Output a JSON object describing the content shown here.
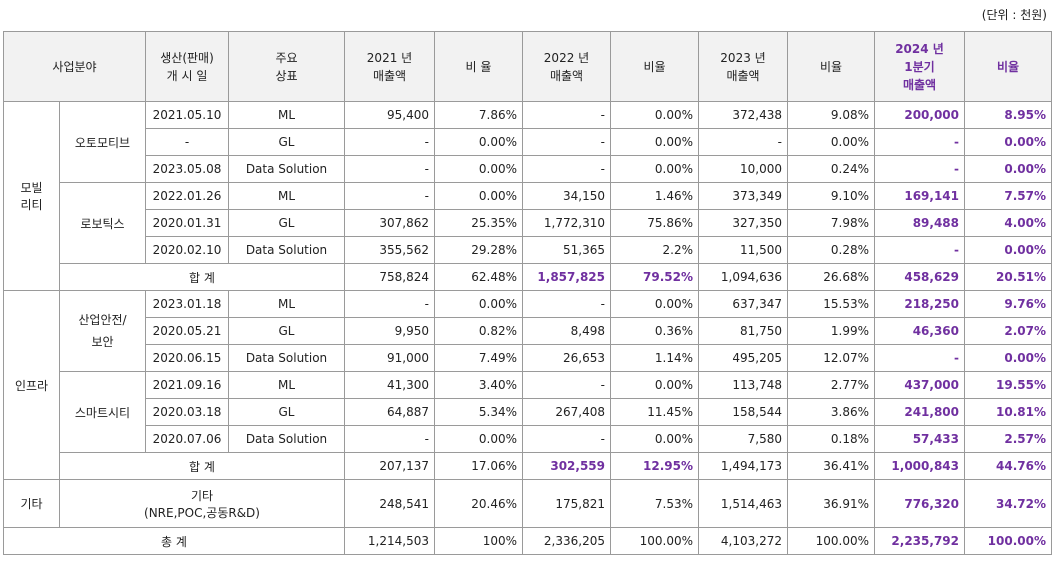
{
  "unit": "(단위 : 천원)",
  "headers": {
    "field": "사업분야",
    "launch": [
      "생산(판매)",
      "개 시 일"
    ],
    "brand": [
      "주요",
      "상표"
    ],
    "rev2021": [
      "2021 년",
      "매출액"
    ],
    "ratio2021": "비 율",
    "rev2022": [
      "2022 년",
      "매출액"
    ],
    "ratio2022": "비율",
    "rev2023": [
      "2023 년",
      "매출액"
    ],
    "ratio2023": "비율",
    "rev2024q1": [
      "2024 년",
      "1분기",
      "매출액"
    ],
    "ratio2024q1": "비율"
  },
  "groups": {
    "mobility": [
      "모빌",
      "리티"
    ],
    "automotive": "오토모티브",
    "robotics": "로보틱스",
    "infra": "인프라",
    "safety": [
      "산업안전/",
      "보안"
    ],
    "smartcity": "스마트시티",
    "etc": "기타",
    "etc_item": [
      "기타",
      "(NRE,POC,공동R&D)"
    ]
  },
  "rows": {
    "auto_ml": {
      "date": "2021.05.10",
      "brand": "ML",
      "r21": "95,400",
      "p21": "7.86%",
      "r22": "-",
      "p22": "0.00%",
      "r23": "372,438",
      "p23": "9.08%",
      "r24": "200,000",
      "p24": "8.95%"
    },
    "auto_gl": {
      "date": "-",
      "brand": "GL",
      "r21": "-",
      "p21": "0.00%",
      "r22": "-",
      "p22": "0.00%",
      "r23": "-",
      "p23": "0.00%",
      "r24": "-",
      "p24": "0.00%"
    },
    "auto_ds": {
      "date": "2023.05.08",
      "brand": "Data Solution",
      "r21": "-",
      "p21": "0.00%",
      "r22": "-",
      "p22": "0.00%",
      "r23": "10,000",
      "p23": "0.24%",
      "r24": "-",
      "p24": "0.00%"
    },
    "robo_ml": {
      "date": "2022.01.26",
      "brand": "ML",
      "r21": "-",
      "p21": "0.00%",
      "r22": "34,150",
      "p22": "1.46%",
      "r23": "373,349",
      "p23": "9.10%",
      "r24": "169,141",
      "p24": "7.57%"
    },
    "robo_gl": {
      "date": "2020.01.31",
      "brand": "GL",
      "r21": "307,862",
      "p21": "25.35%",
      "r22": "1,772,310",
      "p22": "75.86%",
      "r23": "327,350",
      "p23": "7.98%",
      "r24": "89,488",
      "p24": "4.00%"
    },
    "robo_ds": {
      "date": "2020.02.10",
      "brand": "Data Solution",
      "r21": "355,562",
      "p21": "29.28%",
      "r22": "51,365",
      "p22": "2.2%",
      "r23": "11,500",
      "p23": "0.28%",
      "r24": "-",
      "p24": "0.00%"
    },
    "mob_total": {
      "label": "합 계",
      "r21": "758,824",
      "p21": "62.48%",
      "r22": "1,857,825",
      "p22": "79.52%",
      "r23": "1,094,636",
      "p23": "26.68%",
      "r24": "458,629",
      "p24": "20.51%"
    },
    "safe_ml": {
      "date": "2023.01.18",
      "brand": "ML",
      "r21": "-",
      "p21": "0.00%",
      "r22": "-",
      "p22": "0.00%",
      "r23": "637,347",
      "p23": "15.53%",
      "r24": "218,250",
      "p24": "9.76%"
    },
    "safe_gl": {
      "date": "2020.05.21",
      "brand": "GL",
      "r21": "9,950",
      "p21": "0.82%",
      "r22": "8,498",
      "p22": "0.36%",
      "r23": "81,750",
      "p23": "1.99%",
      "r24": "46,360",
      "p24": "2.07%"
    },
    "safe_ds": {
      "date": "2020.06.15",
      "brand": "Data Solution",
      "r21": "91,000",
      "p21": "7.49%",
      "r22": "26,653",
      "p22": "1.14%",
      "r23": "495,205",
      "p23": "12.07%",
      "r24": "-",
      "p24": "0.00%"
    },
    "city_ml": {
      "date": "2021.09.16",
      "brand": "ML",
      "r21": "41,300",
      "p21": "3.40%",
      "r22": "-",
      "p22": "0.00%",
      "r23": "113,748",
      "p23": "2.77%",
      "r24": "437,000",
      "p24": "19.55%"
    },
    "city_gl": {
      "date": "2020.03.18",
      "brand": "GL",
      "r21": "64,887",
      "p21": "5.34%",
      "r22": "267,408",
      "p22": "11.45%",
      "r23": "158,544",
      "p23": "3.86%",
      "r24": "241,800",
      "p24": "10.81%"
    },
    "city_ds": {
      "date": "2020.07.06",
      "brand": "Data Solution",
      "r21": "-",
      "p21": "0.00%",
      "r22": "-",
      "p22": "0.00%",
      "r23": "7,580",
      "p23": "0.18%",
      "r24": "57,433",
      "p24": "2.57%"
    },
    "infra_total": {
      "label": "합 계",
      "r21": "207,137",
      "p21": "17.06%",
      "r22": "302,559",
      "p22": "12.95%",
      "r23": "1,494,173",
      "p23": "36.41%",
      "r24": "1,000,843",
      "p24": "44.76%"
    },
    "etc": {
      "r21": "248,541",
      "p21": "20.46%",
      "r22": "175,821",
      "p22": "7.53%",
      "r23": "1,514,463",
      "p23": "36.91%",
      "r24": "776,320",
      "p24": "34.72%"
    },
    "grand": {
      "label": "총 계",
      "r21": "1,214,503",
      "p21": "100%",
      "r22": "2,336,205",
      "p22": "100.00%",
      "r23": "4,103,272",
      "p23": "100.00%",
      "r24": "2,235,792",
      "p24": "100.00%"
    }
  },
  "colors": {
    "highlight": "#7030a0",
    "header_bg": "#f2f2f2",
    "border": "#9a9a9a"
  }
}
